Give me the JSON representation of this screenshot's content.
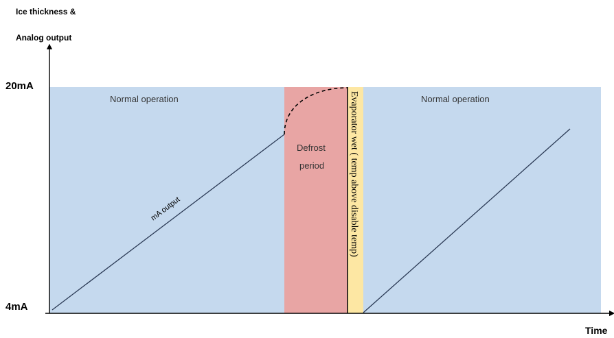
{
  "y_axis": {
    "label_line1": "Ice thickness &",
    "label_line2": "Analog output",
    "tick_top": "20mA",
    "tick_bottom": "4mA"
  },
  "x_axis": {
    "label": "Time"
  },
  "regions": {
    "normal_1": "Normal operation",
    "defrost_line1": "Defrost",
    "defrost_line2": "period",
    "evaporator_wet": "Evaporator wet ( temp above disable temp)",
    "normal_2": "Normal operation"
  },
  "line_label": "mA output",
  "colors": {
    "normal": "#c5d9ee",
    "defrost": "#e8a5a4",
    "evaporator_wet": "#fde7a3",
    "line": "#2b3a55"
  }
}
